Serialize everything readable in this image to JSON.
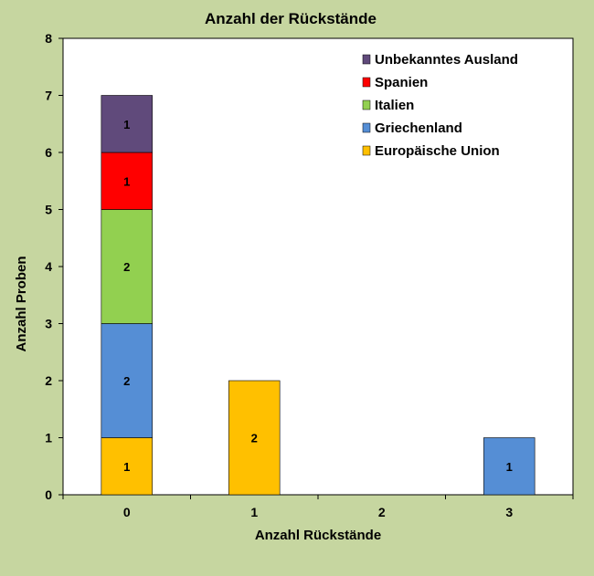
{
  "chart_data": {
    "type": "bar",
    "stacked": true,
    "title": "Anzahl der Rückstände",
    "xlabel": "Anzahl Rückstände",
    "ylabel": "Anzahl Proben",
    "categories": [
      "0",
      "1",
      "2",
      "3"
    ],
    "ylim": [
      0,
      8
    ],
    "yticks": [
      "0",
      "1",
      "2",
      "3",
      "4",
      "5",
      "6",
      "7",
      "8"
    ],
    "grid": false,
    "legend_position": "top-right",
    "series": [
      {
        "name": "Europäische Union",
        "color": "#ffc000",
        "values": [
          1,
          2,
          0,
          0
        ]
      },
      {
        "name": "Griechenland",
        "color": "#558ed5",
        "values": [
          2,
          0,
          0,
          1
        ]
      },
      {
        "name": "Italien",
        "color": "#92d050",
        "values": [
          2,
          0,
          0,
          0
        ]
      },
      {
        "name": "Spanien",
        "color": "#ff0000",
        "values": [
          1,
          0,
          0,
          0
        ]
      },
      {
        "name": "Unbekanntes Ausland",
        "color": "#604a7b",
        "values": [
          1,
          0,
          0,
          0
        ]
      }
    ],
    "legend_order": [
      "Unbekanntes Ausland",
      "Spanien",
      "Italien",
      "Griechenland",
      "Europäische Union"
    ]
  }
}
